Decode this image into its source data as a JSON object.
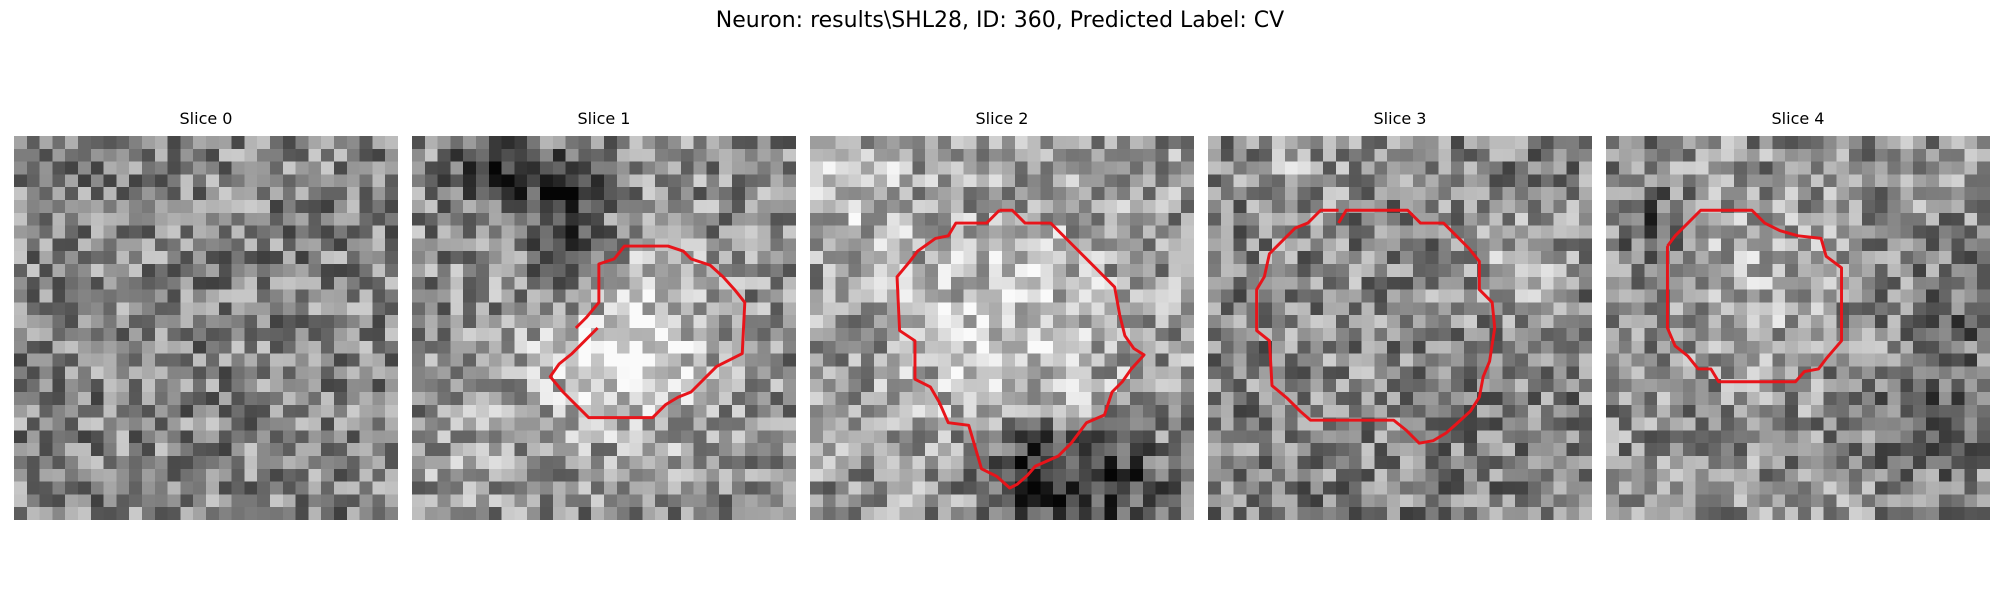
{
  "figure": {
    "title": "Neuron: results\\SHL28, ID: 360, Predicted Label: CV"
  },
  "panels": [
    {
      "title": "Slice 0",
      "has_contour": false
    },
    {
      "title": "Slice 1",
      "has_contour": true
    },
    {
      "title": "Slice 2",
      "has_contour": true
    },
    {
      "title": "Slice 3",
      "has_contour": true
    },
    {
      "title": "Slice 4",
      "has_contour": true
    }
  ],
  "colors": {
    "contour": "#e8141a",
    "background": "#ffffff"
  },
  "colormap": "grayscale"
}
